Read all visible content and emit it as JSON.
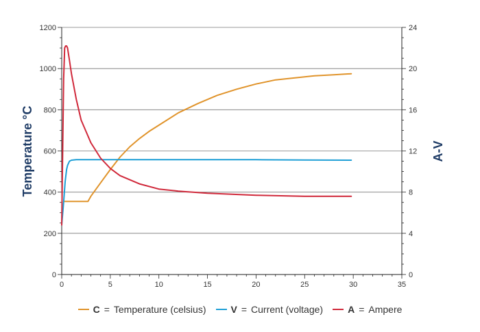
{
  "chart_data": {
    "type": "line",
    "title": "",
    "xlabel": "",
    "ylabel": "Temperature °C",
    "y2label": "A-V",
    "xlim": [
      0,
      35
    ],
    "ylim": [
      0,
      1200
    ],
    "y2lim": [
      0,
      24
    ],
    "xticks": [
      0,
      5,
      10,
      15,
      20,
      25,
      30,
      35
    ],
    "yticks": [
      0,
      200,
      400,
      600,
      800,
      1000,
      1200
    ],
    "y2ticks": [
      0,
      4,
      8,
      12,
      16,
      20,
      24
    ],
    "grid": true,
    "legend_position": "bottom",
    "series": [
      {
        "key": "C",
        "name": "Temperature (celsius)",
        "axis": "left",
        "color": "#e0932a",
        "x": [
          0.2,
          1,
          2,
          2.7,
          3,
          4,
          5,
          6,
          7,
          8,
          9,
          10,
          12,
          14,
          16,
          18,
          20,
          22,
          24,
          26,
          28,
          29.8
        ],
        "y": [
          355,
          355,
          355,
          355,
          380,
          445,
          510,
          570,
          620,
          660,
          695,
          725,
          785,
          830,
          870,
          900,
          925,
          945,
          955,
          965,
          970,
          975
        ]
      },
      {
        "key": "V",
        "name": "Current (voltage)",
        "axis": "right",
        "color": "#1e9fd6",
        "x": [
          0,
          0.2,
          0.35,
          0.5,
          0.6,
          0.8,
          1,
          1.5,
          2,
          3,
          5,
          10,
          15,
          20,
          25,
          29.8
        ],
        "y": [
          4.8,
          7,
          9,
          10.2,
          10.6,
          11,
          11.1,
          11.15,
          11.15,
          11.15,
          11.15,
          11.15,
          11.15,
          11.15,
          11.12,
          11.1
        ]
      },
      {
        "key": "A",
        "name": "Ampere",
        "axis": "right",
        "color": "#d0283a",
        "x": [
          0,
          0.1,
          0.2,
          0.3,
          0.4,
          0.5,
          0.6,
          0.8,
          1,
          1.5,
          2,
          3,
          4,
          5,
          6,
          7,
          8,
          10,
          12,
          15,
          20,
          25,
          29.8
        ],
        "y": [
          4.8,
          12,
          19,
          22,
          22.2,
          22.2,
          22,
          20.8,
          19.5,
          17,
          15,
          12.8,
          11.3,
          10.3,
          9.6,
          9.2,
          8.8,
          8.3,
          8.1,
          7.9,
          7.7,
          7.6,
          7.6
        ]
      }
    ]
  },
  "legend": {
    "items": [
      {
        "key": "C",
        "separator": "=",
        "label": "Temperature (celsius)",
        "color": "#e0932a"
      },
      {
        "key": "V",
        "separator": "=",
        "label": "Current (voltage)",
        "color": "#1e9fd6"
      },
      {
        "key": "A",
        "separator": "=",
        "label": "Ampere",
        "color": "#d0283a"
      }
    ]
  }
}
